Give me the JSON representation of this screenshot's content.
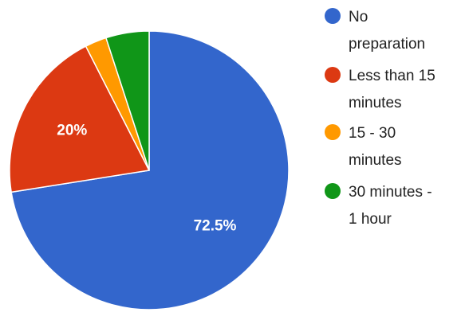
{
  "chart_data": {
    "type": "pie",
    "title": "",
    "legend_position": "right",
    "slices": [
      {
        "label": "No preparation",
        "value": 72.5,
        "color": "#3366cc",
        "data_label": "72.5%",
        "legend_lines": [
          "No",
          "preparation"
        ]
      },
      {
        "label": "Less than 15 minutes",
        "value": 20,
        "color": "#dc3912",
        "data_label": "20%",
        "legend_lines": [
          "Less than 15",
          "minutes"
        ]
      },
      {
        "label": "15 - 30 minutes",
        "value": 2.5,
        "color": "#ff9900",
        "data_label": "",
        "legend_lines": [
          "15 - 30",
          "minutes"
        ]
      },
      {
        "label": "30 minutes - 1 hour",
        "value": 5,
        "color": "#109618",
        "data_label": "",
        "legend_lines": [
          "30 minutes -",
          "1 hour"
        ]
      }
    ]
  }
}
